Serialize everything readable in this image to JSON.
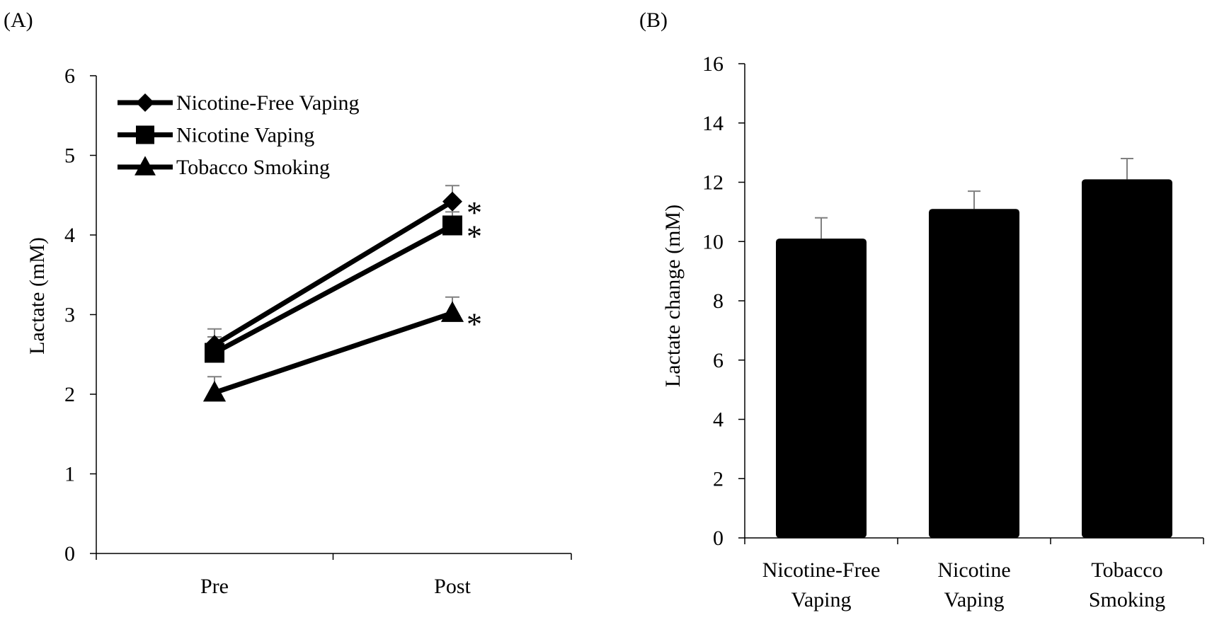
{
  "chart_data": [
    {
      "type": "line",
      "panel_label": "(A)",
      "title": "",
      "xlabel": "",
      "ylabel": "Lactate (mM)",
      "ylim": [
        0,
        6
      ],
      "yticks": [
        "0",
        "1",
        "2",
        "3",
        "4",
        "5",
        "6"
      ],
      "categories": [
        "Pre",
        "Post"
      ],
      "legend_position": "top-left",
      "series": [
        {
          "name": "Nicotine-Free Vaping",
          "marker": "diamond",
          "values": [
            2.62,
            4.42
          ],
          "errors": [
            0.2,
            0.2
          ],
          "annotations": [
            "",
            "*"
          ]
        },
        {
          "name": "Nicotine Vaping",
          "marker": "square",
          "values": [
            2.52,
            4.12
          ],
          "errors": [
            0.2,
            0.17
          ],
          "annotations": [
            "",
            "*"
          ]
        },
        {
          "name": "Tobacco Smoking",
          "marker": "triangle",
          "values": [
            2.02,
            3.02
          ],
          "errors": [
            0.2,
            0.2
          ],
          "annotations": [
            "",
            "*"
          ]
        }
      ],
      "color": "#000000"
    },
    {
      "type": "bar",
      "panel_label": "(B)",
      "title": "",
      "xlabel": "",
      "ylabel": "Lactate change (mM)",
      "ylim": [
        0,
        16
      ],
      "yticks": [
        "0",
        "2",
        "4",
        "6",
        "8",
        "10",
        "12",
        "14",
        "16"
      ],
      "categories": [
        [
          "Nicotine-Free",
          "Vaping"
        ],
        [
          "Nicotine",
          "Vaping"
        ],
        [
          "Tobacco",
          "Smoking"
        ]
      ],
      "values": [
        10.1,
        11.1,
        12.1
      ],
      "errors": [
        0.7,
        0.6,
        0.7
      ],
      "bar_color": "#000000",
      "error_color": "#808080"
    }
  ]
}
